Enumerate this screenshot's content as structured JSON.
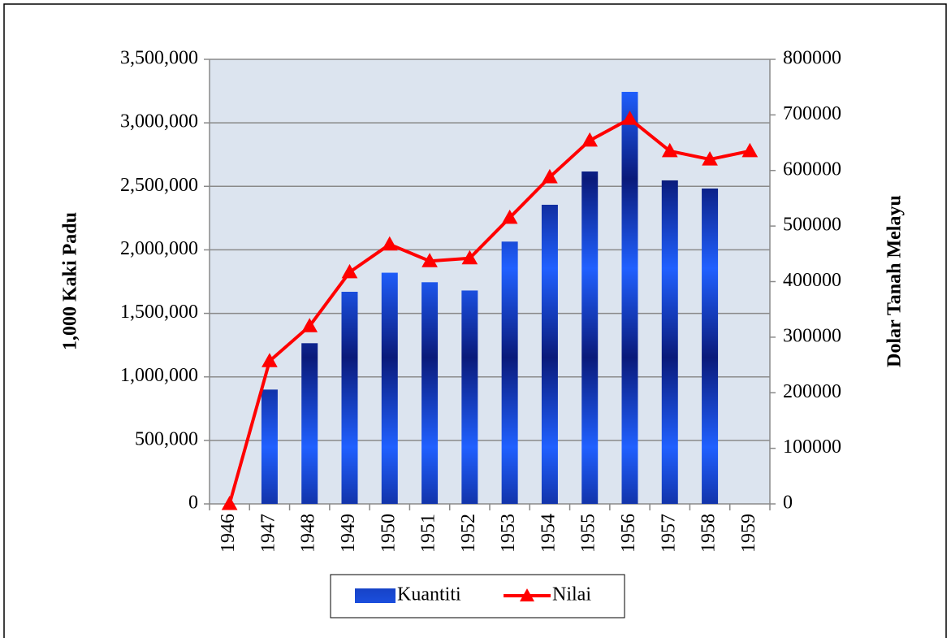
{
  "chart_data": {
    "type": "bar_line",
    "categories": [
      "1946",
      "1947",
      "1948",
      "1949",
      "1950",
      "1951",
      "1952",
      "1953",
      "1954",
      "1955",
      "1956",
      "1957",
      "1958",
      "1959"
    ],
    "series": [
      {
        "name": "Kuantiti",
        "type": "bar",
        "color": "#1a3fd8",
        "axis": "y",
        "values": [
          null,
          900000,
          1265000,
          1670000,
          1820000,
          1745000,
          1680000,
          2065000,
          2355000,
          2617000,
          3244000,
          2547000,
          2483000,
          null
        ]
      },
      {
        "name": "Nilai",
        "type": "line",
        "color": "#ff0000",
        "axis": "y2",
        "values": [
          0,
          257000,
          320000,
          417000,
          467000,
          437000,
          442000,
          515000,
          588000,
          654000,
          693000,
          635000,
          620000,
          635000
        ]
      }
    ],
    "ylabel": "1,000 Kaki Padu",
    "y2label": "Dolar Tanah Melayu",
    "ylim": [
      0,
      3500000
    ],
    "yticks": [
      0,
      {
        "value": 500000,
        "label": "500,000"
      },
      {
        "value": 1000000,
        "label": "1,000,000"
      },
      {
        "value": 1500000,
        "label": "1,500,000"
      },
      {
        "value": 2000000,
        "label": "2,000,000"
      },
      {
        "value": 2500000,
        "label": "2,500,000"
      },
      {
        "value": 3000000,
        "label": "3,000,000"
      },
      {
        "value": 3500000,
        "label": "3,500,000"
      }
    ],
    "y2lim": [
      0,
      800000
    ],
    "y2ticks": [
      0,
      100000,
      200000,
      300000,
      400000,
      500000,
      600000,
      700000,
      800000
    ],
    "grid": true,
    "legend": "bottom"
  }
}
